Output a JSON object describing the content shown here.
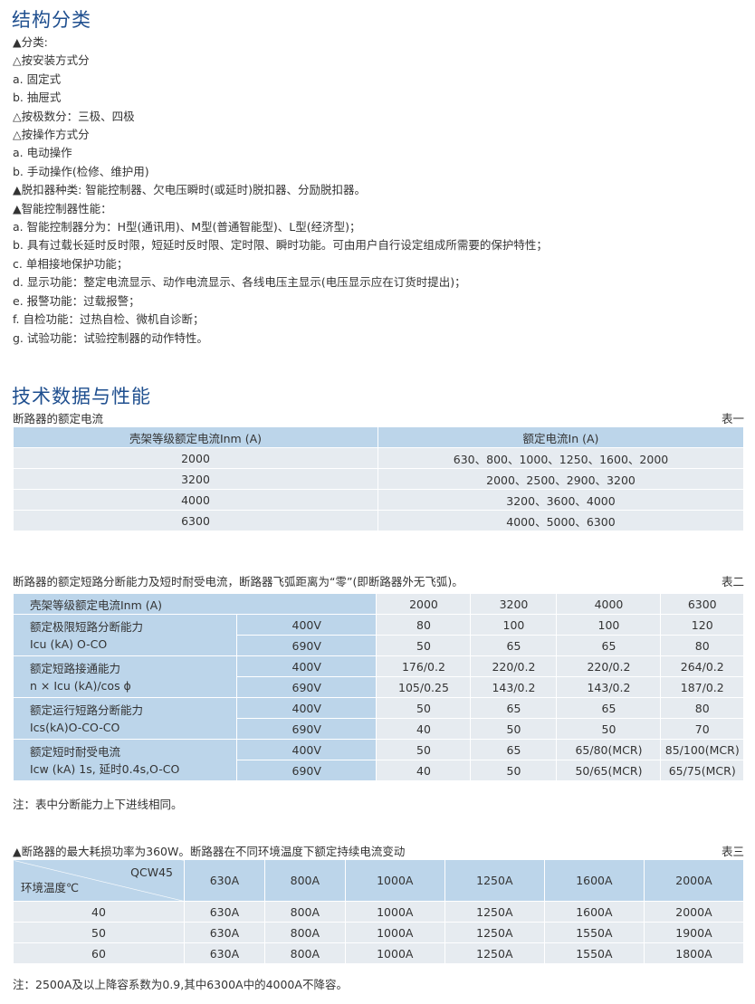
{
  "s1": {
    "title": "结构分类",
    "lines": [
      "▲分类:",
      "△按安装方式分",
      "a. 固定式",
      "b. 抽屉式",
      "△按极数分：三极、四极",
      "△按操作方式分",
      "a. 电动操作",
      "b. 手动操作(检修、维护用)",
      "▲脱扣器种类: 智能控制器、欠电压瞬时(或延时)脱扣器、分励脱扣器。",
      "▲智能控制器性能：",
      "a. 智能控制器分为：H型(通讯用)、M型(普通智能型)、L型(经济型)；",
      "b. 具有过载长延时反时限，短延时反时限、定时限、瞬时功能。可由用户自行设定组成所需要的保护特性；",
      "c. 单相接地保护功能；",
      "d. 显示功能：整定电流显示、动作电流显示、各线电压主显示(电压显示应在订货时提出)；",
      "e. 报警功能：过载报警；",
      "f. 自检功能：过热自检、微机自诊断；",
      "g. 试验功能：试验控制器的动作特性。"
    ]
  },
  "s2": {
    "title": "技术数据与性能"
  },
  "t1": {
    "caption": "断路器的额定电流",
    "label": "表一",
    "headers": [
      "壳架等级额定电流Inm (A)",
      "额定电流In (A)"
    ],
    "rows": [
      [
        "2000",
        "630、800、1000、1250、1600、2000"
      ],
      [
        "3200",
        "2000、2500、2900、3200"
      ],
      [
        "4000",
        "3200、3600、4000"
      ],
      [
        "6300",
        "4000、5000、6300"
      ]
    ]
  },
  "t2": {
    "caption": "断路器的额定短路分断能力及短时耐受电流，断路器飞弧距离为“零”(即断路器外无飞弧)。",
    "label": "表二",
    "header": "壳架等级额定电流Inm (A)",
    "cols": [
      "2000",
      "3200",
      "4000",
      "6300"
    ],
    "groups": [
      {
        "l1": "额定极限短路分断能力",
        "l2": "Icu (kA) O-CO",
        "rows": [
          [
            "400V",
            "80",
            "100",
            "100",
            "120"
          ],
          [
            "690V",
            "50",
            "65",
            "65",
            "80"
          ]
        ]
      },
      {
        "l1": "额定短路接通能力",
        "l2": "n × Icu (kA)/cos ϕ",
        "rows": [
          [
            "400V",
            "176/0.2",
            "220/0.2",
            "220/0.2",
            "264/0.2"
          ],
          [
            "690V",
            "105/0.25",
            "143/0.2",
            "143/0.2",
            "187/0.2"
          ]
        ]
      },
      {
        "l1": "额定运行短路分断能力",
        "l2": "Ics(kA)O-CO-CO",
        "rows": [
          [
            "400V",
            "50",
            "65",
            "65",
            "80"
          ],
          [
            "690V",
            "40",
            "50",
            "50",
            "70"
          ]
        ]
      },
      {
        "l1": "额定短时耐受电流",
        "l2": "Icw (kA) 1s, 延时0.4s,O-CO",
        "rows": [
          [
            "400V",
            "50",
            "65",
            "65/80(MCR)",
            "85/100(MCR)"
          ],
          [
            "690V",
            "40",
            "50",
            "50/65(MCR)",
            "65/75(MCR)"
          ]
        ]
      }
    ],
    "note": "注：表中分断能力上下进线相同。"
  },
  "t3": {
    "caption": "▲断路器的最大耗损功率为360W。断路器在不同环境温度下额定持续电流变动",
    "label": "表三",
    "corner_top": "QCW45",
    "corner_bottom": "环境温度℃",
    "cols": [
      "630A",
      "800A",
      "1000A",
      "1250A",
      "1600A",
      "2000A"
    ],
    "rows": [
      [
        "40",
        "630A",
        "800A",
        "1000A",
        "1250A",
        "1600A",
        "2000A"
      ],
      [
        "50",
        "630A",
        "800A",
        "1000A",
        "1250A",
        "1550A",
        "1900A"
      ],
      [
        "60",
        "630A",
        "800A",
        "1000A",
        "1250A",
        "1550A",
        "1800A"
      ]
    ],
    "note": "注：2500A及以上降容系数为0.9,其中6300A中的4000A不降容。"
  }
}
